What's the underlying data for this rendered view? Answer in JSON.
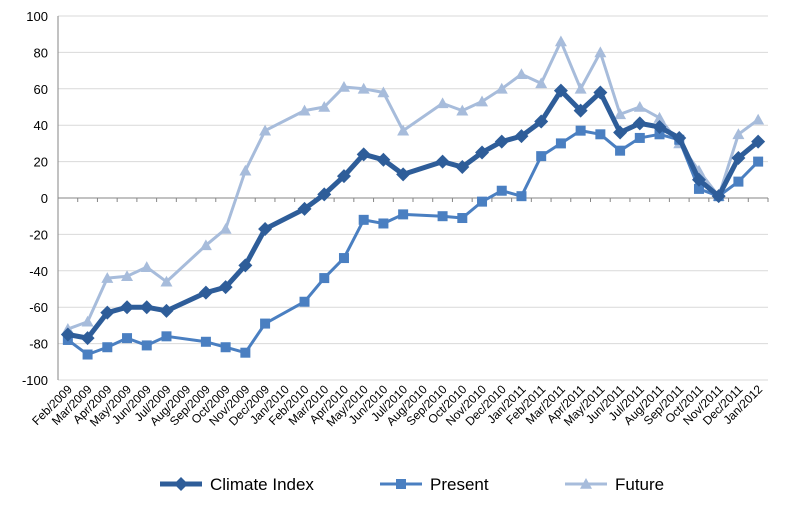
{
  "chart_data": {
    "type": "line",
    "title": "",
    "xlabel": "",
    "ylabel": "",
    "ylim": [
      -100,
      100
    ],
    "yticks": [
      -100,
      -80,
      -60,
      -40,
      -20,
      0,
      20,
      40,
      60,
      80,
      100
    ],
    "grid": "horizontal",
    "legend_position": "bottom",
    "categories": [
      "Feb/2009",
      "Mar/2009",
      "Apr/2009",
      "May/2009",
      "Jun/2009",
      "Jul/2009",
      "Aug/2009",
      "Sep/2009",
      "Oct/2009",
      "Nov/2009",
      "Dec/2009",
      "Jan/2010",
      "Feb/2010",
      "Mar/2010",
      "Apr/2010",
      "May/2010",
      "Jun/2010",
      "Jul/2010",
      "Aug/2010",
      "Sep/2010",
      "Oct/2010",
      "Nov/2010",
      "Dec/2010",
      "Jan/2011",
      "Feb/2011",
      "Mar/2011",
      "Apr/2011",
      "May/2011",
      "Jun/2011",
      "Jul/2011",
      "Aug/2011",
      "Sep/2011",
      "Oct/2011",
      "Nov/2011",
      "Dec/2011",
      "Jan/2012"
    ],
    "series": [
      {
        "name": "Climate Index",
        "color": "#2e5d99",
        "marker": "diamond",
        "points": [
          [
            0,
            -75
          ],
          [
            1,
            -77
          ],
          [
            2,
            -63
          ],
          [
            3,
            -60
          ],
          [
            4,
            -60
          ],
          [
            5,
            -62
          ],
          [
            7,
            -52
          ],
          [
            8,
            -49
          ],
          [
            9,
            -37
          ],
          [
            10,
            -17
          ],
          [
            12,
            -6
          ],
          [
            13,
            2
          ],
          [
            14,
            12
          ],
          [
            15,
            24
          ],
          [
            16,
            21
          ],
          [
            17,
            13
          ],
          [
            19,
            20
          ],
          [
            20,
            17
          ],
          [
            21,
            25
          ],
          [
            22,
            31
          ],
          [
            23,
            34
          ],
          [
            24,
            42
          ],
          [
            25,
            59
          ],
          [
            26,
            48
          ],
          [
            27,
            58
          ],
          [
            28,
            36
          ],
          [
            29,
            41
          ],
          [
            30,
            39
          ],
          [
            31,
            33
          ],
          [
            32,
            10
          ],
          [
            33,
            1
          ],
          [
            34,
            22
          ],
          [
            35,
            31
          ]
        ]
      },
      {
        "name": "Present",
        "color": "#4a7fc1",
        "marker": "square",
        "points": [
          [
            0,
            -78
          ],
          [
            1,
            -86
          ],
          [
            2,
            -82
          ],
          [
            3,
            -77
          ],
          [
            4,
            -81
          ],
          [
            5,
            -76
          ],
          [
            7,
            -79
          ],
          [
            8,
            -82
          ],
          [
            9,
            -85
          ],
          [
            10,
            -69
          ],
          [
            12,
            -57
          ],
          [
            13,
            -44
          ],
          [
            14,
            -33
          ],
          [
            15,
            -12
          ],
          [
            16,
            -14
          ],
          [
            17,
            -9
          ],
          [
            19,
            -10
          ],
          [
            20,
            -11
          ],
          [
            21,
            -2
          ],
          [
            22,
            4
          ],
          [
            23,
            1
          ],
          [
            24,
            23
          ],
          [
            25,
            30
          ],
          [
            26,
            37
          ],
          [
            27,
            35
          ],
          [
            28,
            26
          ],
          [
            29,
            33
          ],
          [
            30,
            35
          ],
          [
            31,
            32
          ],
          [
            32,
            5
          ],
          [
            33,
            1
          ],
          [
            34,
            9
          ],
          [
            35,
            20
          ]
        ]
      },
      {
        "name": "Future",
        "color": "#a7bcdb",
        "marker": "triangle",
        "points": [
          [
            0,
            -72
          ],
          [
            1,
            -68
          ],
          [
            2,
            -44
          ],
          [
            3,
            -43
          ],
          [
            4,
            -38
          ],
          [
            5,
            -46
          ],
          [
            7,
            -26
          ],
          [
            8,
            -17
          ],
          [
            9,
            15
          ],
          [
            10,
            37
          ],
          [
            12,
            48
          ],
          [
            13,
            50
          ],
          [
            14,
            61
          ],
          [
            15,
            60
          ],
          [
            16,
            58
          ],
          [
            17,
            37
          ],
          [
            19,
            52
          ],
          [
            20,
            48
          ],
          [
            21,
            53
          ],
          [
            22,
            60
          ],
          [
            23,
            68
          ],
          [
            24,
            63
          ],
          [
            25,
            86
          ],
          [
            26,
            60
          ],
          [
            27,
            80
          ],
          [
            28,
            46
          ],
          [
            29,
            50
          ],
          [
            30,
            44
          ],
          [
            31,
            30
          ],
          [
            32,
            15
          ],
          [
            33,
            1
          ],
          [
            34,
            35
          ],
          [
            35,
            43
          ]
        ]
      }
    ]
  }
}
